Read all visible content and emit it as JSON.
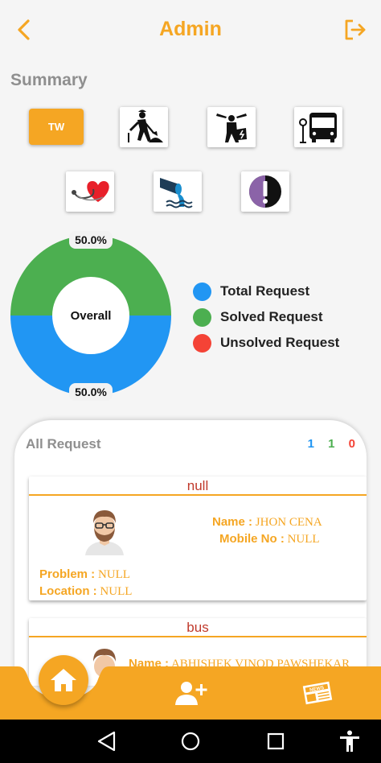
{
  "header": {
    "title": "Admin",
    "back_icon": "back-chevron-icon",
    "logout_icon": "logout-icon"
  },
  "summary": {
    "title": "Summary",
    "categories": [
      {
        "label": "TW",
        "selected": true
      },
      {
        "icon": "road-worker-icon"
      },
      {
        "icon": "electrician-icon"
      },
      {
        "icon": "bus-stop-icon"
      },
      {
        "icon": "health-heart-icon"
      },
      {
        "icon": "water-drain-icon"
      },
      {
        "icon": "info-exclamation-icon"
      }
    ]
  },
  "chart_data": {
    "type": "pie",
    "title": "",
    "center_label": "Overall",
    "slices": [
      {
        "label": "Solved Request",
        "percent": 50.0,
        "percent_label": "50.0%",
        "color": "#4caf50"
      },
      {
        "label": "Total Request",
        "percent": 50.0,
        "percent_label": "50.0%",
        "color": "#2196f3"
      }
    ],
    "legend": [
      {
        "label": "Total Request",
        "color": "#2196f3"
      },
      {
        "label": "Solved Request",
        "color": "#4caf50"
      },
      {
        "label": "Unsolved Request",
        "color": "#f44336"
      }
    ],
    "legend_position": "right"
  },
  "requests": {
    "title": "All Request",
    "counts": {
      "total": "1",
      "solved": "1",
      "unsolved": "0"
    },
    "count_colors": {
      "total": "#2196f3",
      "solved": "#4caf50",
      "unsolved": "#f44336"
    },
    "items": [
      {
        "category": "null",
        "name_label": "Name :",
        "name": "JHON CENA",
        "mobile_label": "Mobile No :",
        "mobile": "NULL",
        "problem_label": "Problem :",
        "problem": "NULL",
        "location_label": "Location :",
        "location": "NULL"
      },
      {
        "category": "bus",
        "name_label": "Name :",
        "name": "ABHISHEK VINOD PAWSHEKAR"
      }
    ]
  },
  "bottom_nav": {
    "items": [
      "home-icon",
      "add-user-icon",
      "news-icon"
    ]
  },
  "colors": {
    "accent": "#f5a623",
    "heading_grey": "#8f8f8f",
    "card_title_red": "#c0392b"
  }
}
